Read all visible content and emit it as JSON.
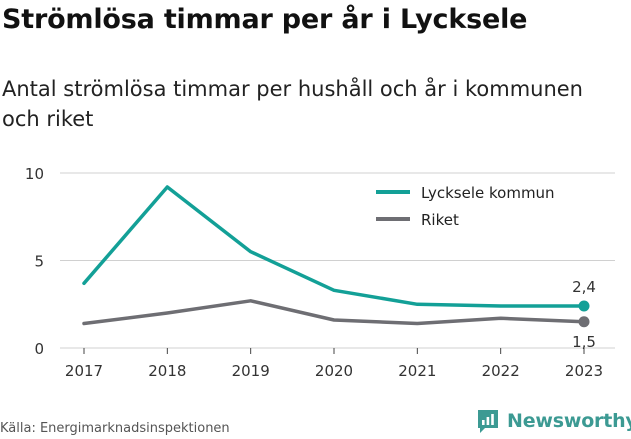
{
  "title": "Strömlösa timmar per år i Lycksele",
  "subtitle": "Antal strömlösa timmar per hushåll och år i kommunen och riket",
  "source": "Källa: Energimarknadsinspektionen",
  "brand": "Newsworthy",
  "colors": {
    "lycksele": "#13a097",
    "riket": "#6e6e73",
    "grid": "#d0d0d0",
    "brand": "#3c9a93"
  },
  "chart_data": {
    "type": "line",
    "x": [
      "2017",
      "2018",
      "2019",
      "2020",
      "2021",
      "2022",
      "2023"
    ],
    "series": [
      {
        "name": "Lycksele kommun",
        "values": [
          3.7,
          9.2,
          5.5,
          3.3,
          2.5,
          2.4,
          2.4
        ],
        "end_label": "2,4"
      },
      {
        "name": "Riket",
        "values": [
          1.4,
          2.0,
          2.7,
          1.6,
          1.4,
          1.7,
          1.5
        ],
        "end_label": "1,5"
      }
    ],
    "yticks": [
      "0",
      "5",
      "10"
    ],
    "ylim": [
      0,
      10
    ],
    "grid": true,
    "legend": "top-right",
    "title": "",
    "xlabel": "",
    "ylabel": ""
  }
}
